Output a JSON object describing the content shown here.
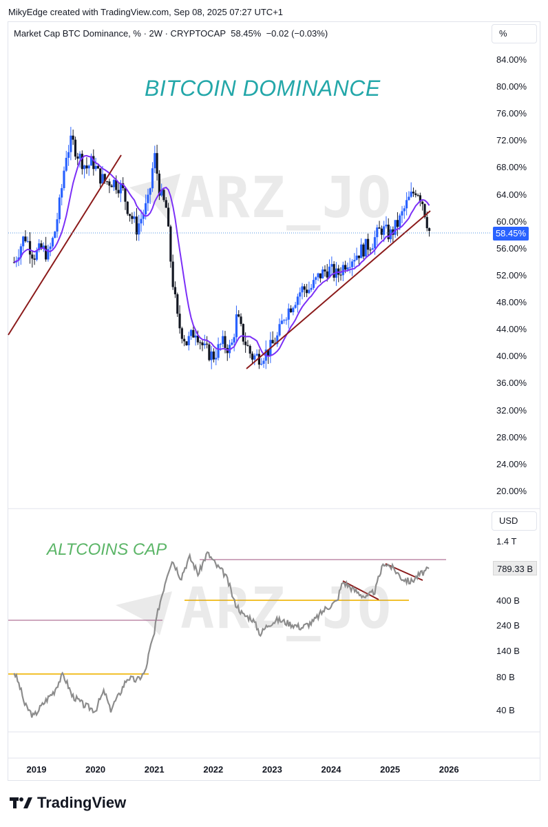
{
  "creator_line": "MikyEdge created with TradingView.com, Sep 08, 2025 07:27 UTC+1",
  "header": {
    "symbol_info": "Market Cap BTC Dominance, % · 2W · CRYPTOCAP",
    "last_value": "58.45%",
    "change": "−0.02 (−0.03%)"
  },
  "top_unit": "%",
  "bottom_unit": "USD",
  "top_title": "BITCOIN DOMINANCE",
  "bottom_title": "ALTCOINS CAP",
  "watermark": "ARZ_JO",
  "price_tag": "58.45%",
  "alt_tag": "789.33 B",
  "brand": "TradingView",
  "colors": {
    "candle_up": "#2962ff",
    "candle_down": "#131722",
    "ma_line": "#7b2ff7",
    "trendline": "#8b1a1a",
    "alt_line": "#8c8c8c",
    "alt_support": "#f2c12e",
    "alt_resistance": "#9c4f7e"
  },
  "chart_data": [
    {
      "type": "candlestick",
      "title": "BITCOIN DOMINANCE",
      "ylabel": "%",
      "yticks": [
        "84.00%",
        "80.00%",
        "76.00%",
        "72.00%",
        "68.00%",
        "64.00%",
        "60.00%",
        "56.00%",
        "52.00%",
        "48.00%",
        "44.00%",
        "40.00%",
        "36.00%",
        "32.00%",
        "28.00%",
        "24.00%",
        "20.00%"
      ],
      "ylim": [
        18,
        86
      ],
      "x_categories": [
        "2019",
        "2020",
        "2021",
        "2022",
        "2023",
        "2024",
        "2025",
        "2026"
      ],
      "series": [
        {
          "name": "BTC Dominance",
          "values": [
            {
              "x": 2018.62,
              "y": 54
            },
            {
              "x": 2018.8,
              "y": 58
            },
            {
              "x": 2018.95,
              "y": 55
            },
            {
              "x": 2019.1,
              "y": 56
            },
            {
              "x": 2019.2,
              "y": 55
            },
            {
              "x": 2019.3,
              "y": 58
            },
            {
              "x": 2019.4,
              "y": 63
            },
            {
              "x": 2019.5,
              "y": 70
            },
            {
              "x": 2019.6,
              "y": 72
            },
            {
              "x": 2019.7,
              "y": 70
            },
            {
              "x": 2019.85,
              "y": 68
            },
            {
              "x": 2019.95,
              "y": 69
            },
            {
              "x": 2020.05,
              "y": 67
            },
            {
              "x": 2020.15,
              "y": 66
            },
            {
              "x": 2020.3,
              "y": 66
            },
            {
              "x": 2020.45,
              "y": 65
            },
            {
              "x": 2020.55,
              "y": 62
            },
            {
              "x": 2020.7,
              "y": 59
            },
            {
              "x": 2020.8,
              "y": 61
            },
            {
              "x": 2020.9,
              "y": 63
            },
            {
              "x": 2021.0,
              "y": 70
            },
            {
              "x": 2021.1,
              "y": 64
            },
            {
              "x": 2021.2,
              "y": 62
            },
            {
              "x": 2021.3,
              "y": 52
            },
            {
              "x": 2021.4,
              "y": 45
            },
            {
              "x": 2021.55,
              "y": 42
            },
            {
              "x": 2021.7,
              "y": 44
            },
            {
              "x": 2021.85,
              "y": 41
            },
            {
              "x": 2022.0,
              "y": 40
            },
            {
              "x": 2022.15,
              "y": 42
            },
            {
              "x": 2022.3,
              "y": 41
            },
            {
              "x": 2022.4,
              "y": 46
            },
            {
              "x": 2022.5,
              "y": 43
            },
            {
              "x": 2022.65,
              "y": 40
            },
            {
              "x": 2022.8,
              "y": 40
            },
            {
              "x": 2022.95,
              "y": 41
            },
            {
              "x": 2023.1,
              "y": 43
            },
            {
              "x": 2023.2,
              "y": 46
            },
            {
              "x": 2023.35,
              "y": 48
            },
            {
              "x": 2023.5,
              "y": 50
            },
            {
              "x": 2023.65,
              "y": 50
            },
            {
              "x": 2023.8,
              "y": 52
            },
            {
              "x": 2023.95,
              "y": 53
            },
            {
              "x": 2024.1,
              "y": 52
            },
            {
              "x": 2024.25,
              "y": 54
            },
            {
              "x": 2024.4,
              "y": 55
            },
            {
              "x": 2024.55,
              "y": 56
            },
            {
              "x": 2024.7,
              "y": 57
            },
            {
              "x": 2024.85,
              "y": 59
            },
            {
              "x": 2025.0,
              "y": 58
            },
            {
              "x": 2025.15,
              "y": 60
            },
            {
              "x": 2025.3,
              "y": 63
            },
            {
              "x": 2025.45,
              "y": 65
            },
            {
              "x": 2025.55,
              "y": 63
            },
            {
              "x": 2025.6,
              "y": 61
            },
            {
              "x": 2025.67,
              "y": 58.45
            }
          ]
        }
      ]
    },
    {
      "type": "line",
      "title": "ALTCOINS CAP",
      "ylabel": "USD",
      "scale": "log",
      "yticks": [
        "1.4 T",
        "400 B",
        "240 B",
        "140 B",
        "80 B",
        "40 B"
      ],
      "x_categories": [
        "2019",
        "2020",
        "2021",
        "2022",
        "2023",
        "2024",
        "2025",
        "2026"
      ],
      "series": [
        {
          "name": "Altcoins Cap",
          "values": [
            {
              "x": 2018.62,
              "y": 90
            },
            {
              "x": 2018.8,
              "y": 45
            },
            {
              "x": 2018.95,
              "y": 35
            },
            {
              "x": 2019.1,
              "y": 45
            },
            {
              "x": 2019.3,
              "y": 60
            },
            {
              "x": 2019.45,
              "y": 85
            },
            {
              "x": 2019.6,
              "y": 55
            },
            {
              "x": 2019.8,
              "y": 45
            },
            {
              "x": 2020.0,
              "y": 40
            },
            {
              "x": 2020.15,
              "y": 60
            },
            {
              "x": 2020.25,
              "y": 40
            },
            {
              "x": 2020.4,
              "y": 55
            },
            {
              "x": 2020.55,
              "y": 80
            },
            {
              "x": 2020.7,
              "y": 75
            },
            {
              "x": 2020.85,
              "y": 90
            },
            {
              "x": 2021.0,
              "y": 200
            },
            {
              "x": 2021.15,
              "y": 500
            },
            {
              "x": 2021.3,
              "y": 950
            },
            {
              "x": 2021.45,
              "y": 650
            },
            {
              "x": 2021.6,
              "y": 1000
            },
            {
              "x": 2021.75,
              "y": 700
            },
            {
              "x": 2021.9,
              "y": 1100
            },
            {
              "x": 2022.05,
              "y": 850
            },
            {
              "x": 2022.2,
              "y": 700
            },
            {
              "x": 2022.35,
              "y": 400
            },
            {
              "x": 2022.5,
              "y": 300
            },
            {
              "x": 2022.65,
              "y": 280
            },
            {
              "x": 2022.8,
              "y": 200
            },
            {
              "x": 2022.95,
              "y": 250
            },
            {
              "x": 2023.1,
              "y": 270
            },
            {
              "x": 2023.3,
              "y": 250
            },
            {
              "x": 2023.5,
              "y": 230
            },
            {
              "x": 2023.7,
              "y": 260
            },
            {
              "x": 2023.9,
              "y": 340
            },
            {
              "x": 2024.1,
              "y": 400
            },
            {
              "x": 2024.2,
              "y": 600
            },
            {
              "x": 2024.4,
              "y": 500
            },
            {
              "x": 2024.6,
              "y": 430
            },
            {
              "x": 2024.75,
              "y": 500
            },
            {
              "x": 2024.9,
              "y": 900
            },
            {
              "x": 2025.05,
              "y": 800
            },
            {
              "x": 2025.2,
              "y": 650
            },
            {
              "x": 2025.35,
              "y": 600
            },
            {
              "x": 2025.5,
              "y": 700
            },
            {
              "x": 2025.67,
              "y": 789.33
            }
          ]
        }
      ]
    }
  ]
}
